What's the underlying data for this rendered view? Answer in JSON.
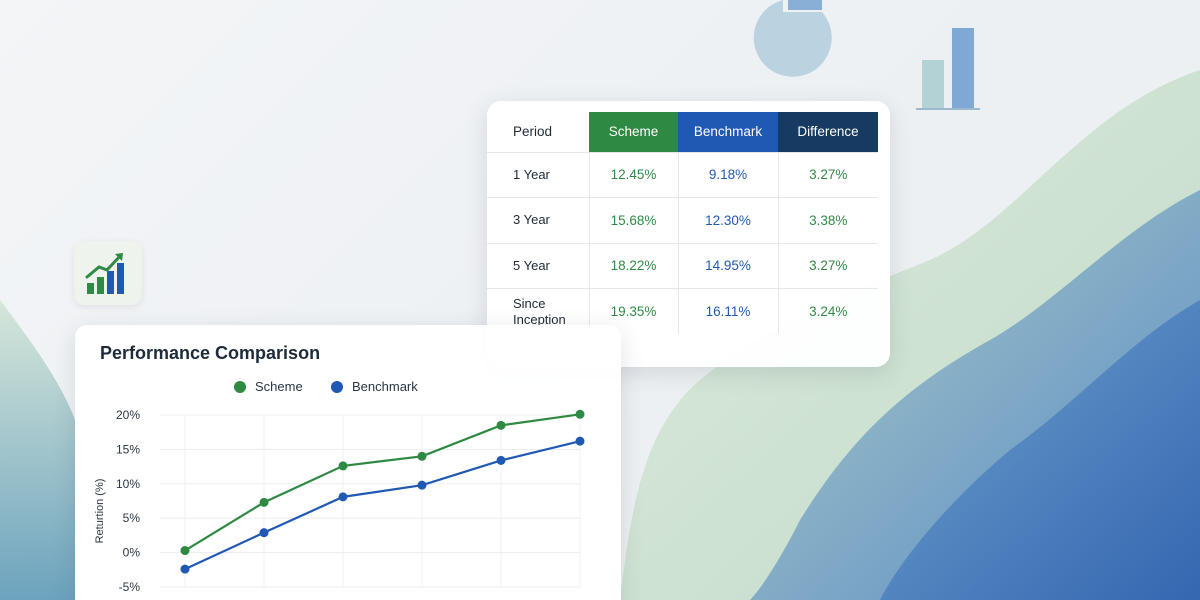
{
  "colors": {
    "scheme": "#2e8a43",
    "benchmark": "#1f59b3",
    "difference_header": "#163a62"
  },
  "icons": [
    "trend-bar-chart-icon",
    "decorative-pie-icon",
    "decorative-bar-icon"
  ],
  "table": {
    "headers": {
      "period": "Period",
      "scheme": "Scheme",
      "benchmark": "Benchmark",
      "difference": "Difference"
    },
    "rows": [
      {
        "period": "1 Year",
        "scheme": "12.45%",
        "benchmark": "9.18%",
        "difference": "3.27%"
      },
      {
        "period": "3 Year",
        "scheme": "15.68%",
        "benchmark": "12.30%",
        "difference": "3.38%"
      },
      {
        "period": "5 Year",
        "scheme": "18.22%",
        "benchmark": "14.95%",
        "difference": "3.27%"
      },
      {
        "period": "Since\nInception",
        "scheme": "19.35%",
        "benchmark": "16.11%",
        "difference": "3.24%"
      }
    ]
  },
  "chart_data": {
    "type": "line",
    "title": "Performance Comparison",
    "ylabel": "Returtion (%)",
    "xlabel": "",
    "ylim": [
      -5,
      20
    ],
    "yticks": [
      20,
      15,
      10,
      5,
      0,
      -5
    ],
    "ytick_labels": [
      "20%",
      "15%",
      "10%",
      "5%",
      "0%",
      "-5%"
    ],
    "legend_position": "top-center",
    "grid": true,
    "x": [
      1,
      2,
      3,
      4,
      5,
      6
    ],
    "series": [
      {
        "name": "Scheme",
        "values": [
          0.3,
          7.3,
          12.6,
          14.0,
          18.5,
          20.1
        ]
      },
      {
        "name": "Benchmark",
        "values": [
          -2.4,
          2.9,
          8.1,
          9.8,
          13.4,
          16.2
        ]
      }
    ]
  }
}
